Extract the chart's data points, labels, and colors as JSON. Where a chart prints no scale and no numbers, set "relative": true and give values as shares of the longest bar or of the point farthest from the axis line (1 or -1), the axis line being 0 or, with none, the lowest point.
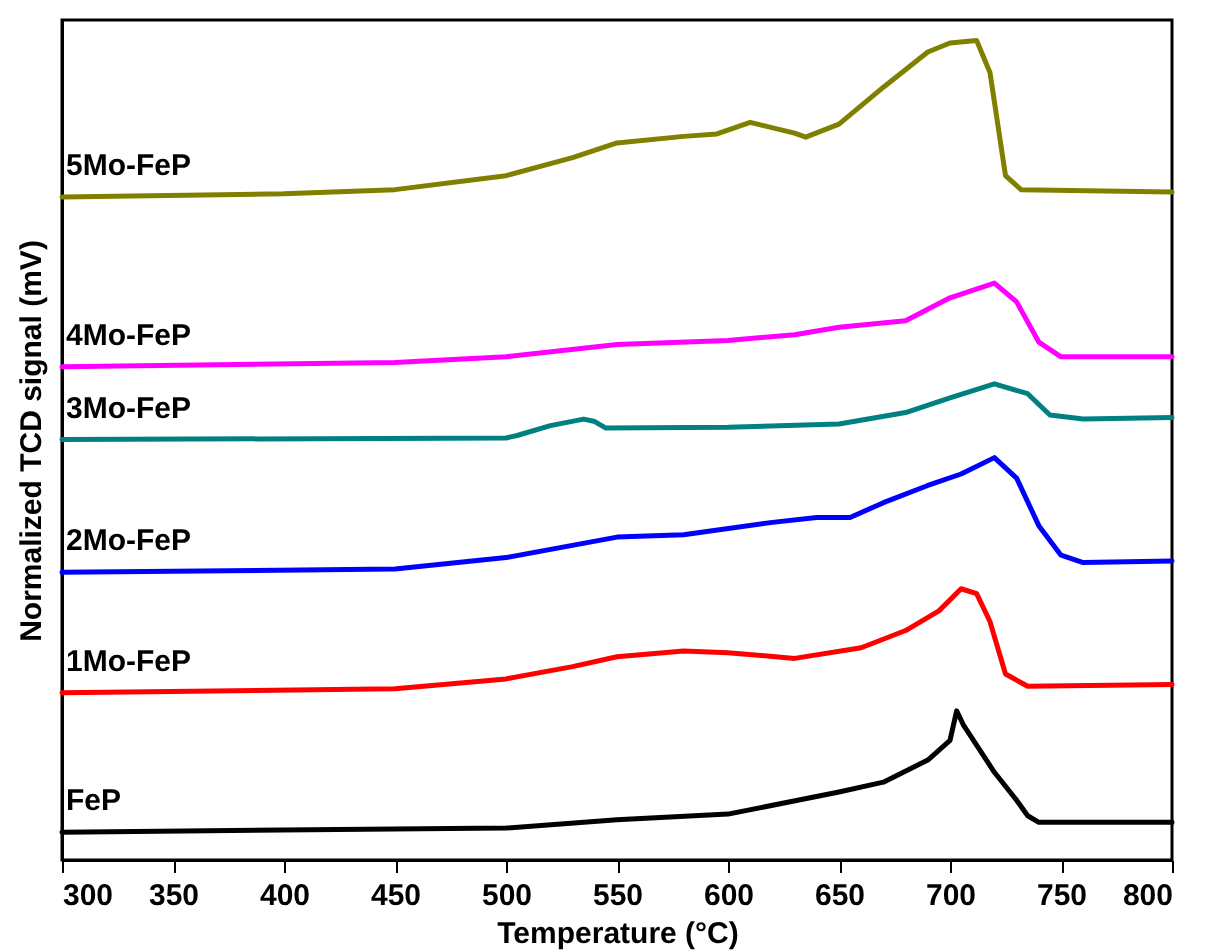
{
  "chart_data": {
    "type": "line",
    "relative": true,
    "xlabel": "Temperature (°C)",
    "ylabel": "Normalized TCD signal (mV)",
    "xlim": [
      300,
      800
    ],
    "xticks": [
      300,
      350,
      400,
      450,
      500,
      550,
      600,
      650,
      700,
      750,
      800
    ],
    "marker": "none",
    "line_style": "solid",
    "grid": false,
    "legend": false,
    "series": [
      {
        "name": "FeP",
        "color": "#000000",
        "x": [
          300,
          500,
          550,
          600,
          650,
          670,
          690,
          700,
          703,
          706,
          720,
          730,
          735,
          740,
          800
        ],
        "values": [
          0.034,
          0.039,
          0.049,
          0.056,
          0.083,
          0.095,
          0.122,
          0.146,
          0.182,
          0.165,
          0.107,
          0.073,
          0.054,
          0.046,
          0.046
        ]
      },
      {
        "name": "1Mo-FeP",
        "color": "#ff0000",
        "x": [
          300,
          450,
          500,
          530,
          550,
          580,
          600,
          630,
          660,
          680,
          695,
          705,
          712,
          718,
          725,
          735,
          800
        ],
        "values": [
          0.204,
          0.209,
          0.221,
          0.236,
          0.248,
          0.255,
          0.253,
          0.246,
          0.259,
          0.28,
          0.304,
          0.331,
          0.325,
          0.291,
          0.227,
          0.212,
          0.214
        ]
      },
      {
        "name": "2Mo-FeP",
        "color": "#0000ff",
        "x": [
          300,
          450,
          500,
          550,
          580,
          620,
          640,
          655,
          670,
          690,
          705,
          720,
          730,
          740,
          750,
          760,
          800
        ],
        "values": [
          0.351,
          0.355,
          0.369,
          0.394,
          0.397,
          0.412,
          0.418,
          0.418,
          0.436,
          0.457,
          0.471,
          0.491,
          0.466,
          0.408,
          0.372,
          0.363,
          0.365
        ]
      },
      {
        "name": "3Mo-FeP",
        "color": "#008080",
        "x": [
          300,
          500,
          505,
          520,
          535,
          540,
          545,
          600,
          650,
          680,
          700,
          720,
          735,
          745,
          760,
          800
        ],
        "values": [
          0.513,
          0.515,
          0.518,
          0.53,
          0.538,
          0.535,
          0.527,
          0.528,
          0.532,
          0.546,
          0.564,
          0.581,
          0.569,
          0.543,
          0.538,
          0.54
        ]
      },
      {
        "name": "4Mo-FeP",
        "color": "#ff00ff",
        "x": [
          300,
          450,
          500,
          550,
          600,
          630,
          650,
          680,
          700,
          720,
          730,
          740,
          750,
          800
        ],
        "values": [
          0.602,
          0.607,
          0.614,
          0.629,
          0.634,
          0.641,
          0.65,
          0.658,
          0.686,
          0.704,
          0.681,
          0.632,
          0.614,
          0.614
        ]
      },
      {
        "name": "5Mo-FeP",
        "color": "#808000",
        "x": [
          300,
          400,
          450,
          500,
          530,
          550,
          580,
          595,
          610,
          630,
          635,
          650,
          670,
          690,
          700,
          712,
          718,
          725,
          732,
          800
        ],
        "values": [
          0.809,
          0.813,
          0.818,
          0.835,
          0.857,
          0.875,
          0.883,
          0.886,
          0.9,
          0.887,
          0.882,
          0.898,
          0.943,
          0.986,
          0.997,
          1,
          0.961,
          0.835,
          0.818,
          0.815
        ]
      }
    ]
  }
}
